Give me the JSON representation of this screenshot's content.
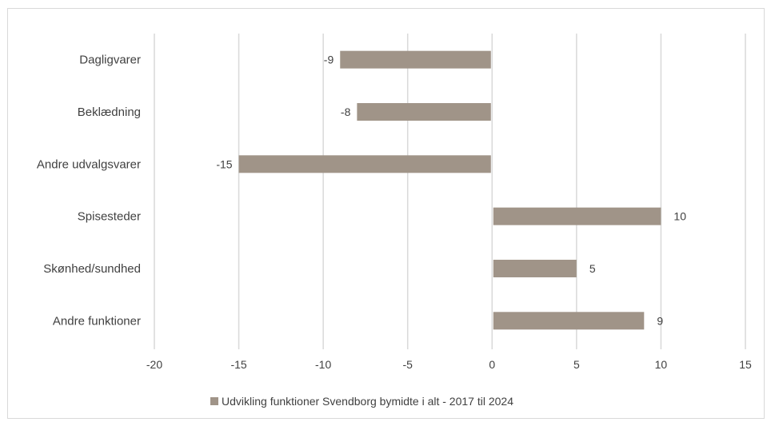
{
  "chart_data": {
    "type": "bar",
    "orientation": "horizontal",
    "categories": [
      "Dagligvarer",
      "Beklædning",
      "Andre udvalgsvarer",
      "Spisesteder",
      "Skønhed/sundhed",
      "Andre funktioner"
    ],
    "series": [
      {
        "name": "Udvikling funktioner Svendborg bymidte i alt - 2017 til 2024",
        "values": [
          -9,
          -8,
          -15,
          10,
          5,
          9
        ]
      }
    ],
    "data_labels": [
      "-9",
      "-8",
      "-15",
      "10",
      "5",
      "9"
    ],
    "xlim": [
      -20,
      15
    ],
    "xticks": [
      -20,
      -15,
      -10,
      -5,
      0,
      5,
      10,
      15
    ],
    "xtick_labels": [
      "-20",
      "-15",
      "-10",
      "-5",
      "0",
      "5",
      "10",
      "15"
    ],
    "grid": "vertical",
    "legend_position": "bottom",
    "colors": {
      "bar": "#a09488",
      "grid": "#d9d9d9",
      "text": "#404040"
    }
  }
}
